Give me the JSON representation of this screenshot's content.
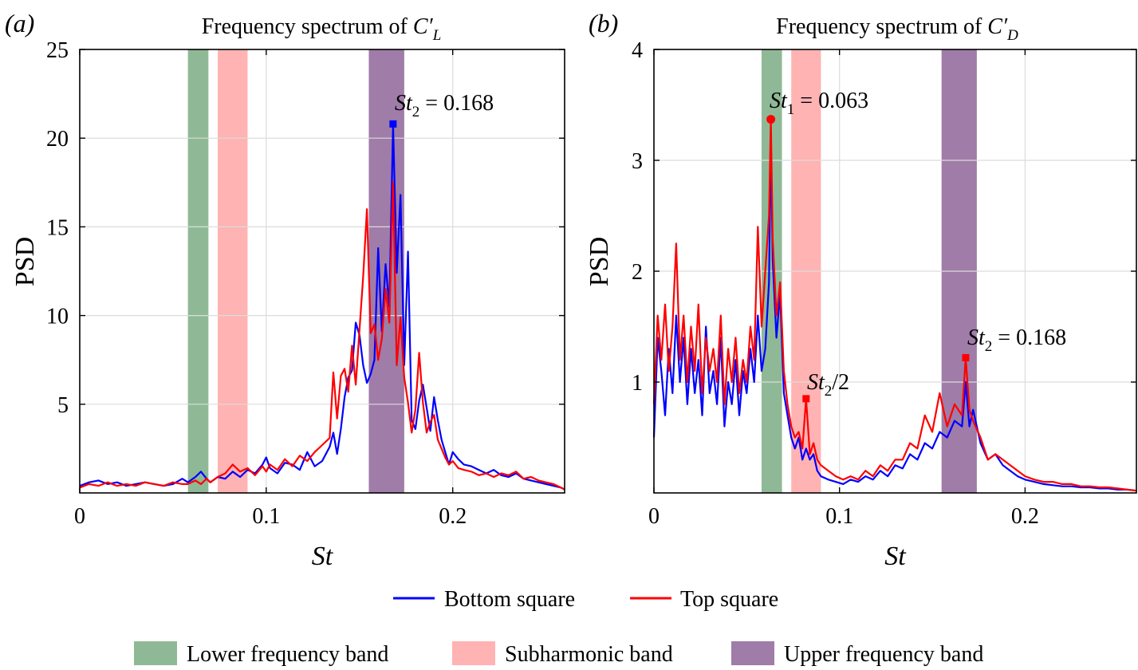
{
  "colors": {
    "bottom": "#0000ff",
    "top": "#ff0000",
    "lower_band": "#8fb996",
    "sub_band": "#ffb3b3",
    "upper_band": "#a07ca8",
    "grid": "#dcdcdc"
  },
  "legend": {
    "lines": [
      {
        "key": "bottom",
        "label": "Bottom square"
      },
      {
        "key": "top",
        "label": "Top square"
      }
    ],
    "bands": [
      {
        "key": "lower_band",
        "label": "Lower frequency band"
      },
      {
        "key": "sub_band",
        "label": "Subharmonic band"
      },
      {
        "key": "upper_band",
        "label": "Upper frequency band"
      }
    ]
  },
  "chart_data": [
    {
      "type": "line",
      "panel_label": "(a)",
      "title": "Frequency spectrum of C′L",
      "xlabel": "St",
      "ylabel": "PSD",
      "xlim": [
        0,
        0.26
      ],
      "ylim": [
        0,
        25
      ],
      "xticks": [
        0,
        0.1,
        0.2
      ],
      "xtick_labels": [
        "0",
        "0.1",
        "0.2"
      ],
      "yticks": [
        5,
        10,
        15,
        20,
        25
      ],
      "ytick_labels": [
        "5",
        "10",
        "15",
        "20",
        "25"
      ],
      "grid": true,
      "bands": [
        {
          "key": "lower_band",
          "range": [
            0.058,
            0.069
          ]
        },
        {
          "key": "sub_band",
          "range": [
            0.074,
            0.09
          ]
        },
        {
          "key": "upper_band",
          "range": [
            0.155,
            0.174
          ]
        }
      ],
      "series": [
        {
          "name": "Bottom square",
          "key": "bottom",
          "x": [
            0,
            0.005,
            0.01,
            0.015,
            0.02,
            0.025,
            0.03,
            0.035,
            0.04,
            0.045,
            0.05,
            0.055,
            0.058,
            0.062,
            0.065,
            0.068,
            0.07,
            0.074,
            0.078,
            0.082,
            0.086,
            0.09,
            0.094,
            0.098,
            0.1,
            0.102,
            0.106,
            0.11,
            0.114,
            0.118,
            0.122,
            0.126,
            0.13,
            0.134,
            0.136,
            0.138,
            0.14,
            0.142,
            0.144,
            0.146,
            0.148,
            0.15,
            0.152,
            0.154,
            0.156,
            0.158,
            0.16,
            0.162,
            0.164,
            0.166,
            0.168,
            0.17,
            0.172,
            0.174,
            0.176,
            0.178,
            0.18,
            0.182,
            0.184,
            0.186,
            0.188,
            0.19,
            0.192,
            0.194,
            0.196,
            0.198,
            0.2,
            0.203,
            0.206,
            0.21,
            0.214,
            0.218,
            0.222,
            0.226,
            0.23,
            0.234,
            0.238,
            0.242,
            0.246,
            0.25,
            0.254,
            0.258,
            0.26
          ],
          "y": [
            0.4,
            0.6,
            0.7,
            0.5,
            0.6,
            0.4,
            0.5,
            0.6,
            0.5,
            0.4,
            0.5,
            0.8,
            0.6,
            0.9,
            1.2,
            0.8,
            0.6,
            0.9,
            0.8,
            1.2,
            0.9,
            1.3,
            1.1,
            1.6,
            2.0,
            1.4,
            1.1,
            1.7,
            1.6,
            1.3,
            2.3,
            1.5,
            1.8,
            2.6,
            3.4,
            2.2,
            3.6,
            5.4,
            6.5,
            6.9,
            9.6,
            8.9,
            7.2,
            6.2,
            6.7,
            7.5,
            13.8,
            9.1,
            12.9,
            10.5,
            20.8,
            12.4,
            16.8,
            7.2,
            13.6,
            4.1,
            3.6,
            5.2,
            6.1,
            4.8,
            3.5,
            5.4,
            4.1,
            3.0,
            2.3,
            1.6,
            2.3,
            1.9,
            1.6,
            1.5,
            1.3,
            1.1,
            1.3,
            1.0,
            0.9,
            1.1,
            0.8,
            0.7,
            0.6,
            0.5,
            0.4,
            0.3,
            0.2
          ]
        },
        {
          "name": "Top square",
          "key": "top",
          "x": [
            0,
            0.005,
            0.01,
            0.015,
            0.02,
            0.025,
            0.03,
            0.035,
            0.04,
            0.045,
            0.05,
            0.055,
            0.058,
            0.062,
            0.065,
            0.068,
            0.07,
            0.074,
            0.078,
            0.082,
            0.086,
            0.09,
            0.094,
            0.098,
            0.1,
            0.102,
            0.106,
            0.11,
            0.114,
            0.118,
            0.122,
            0.126,
            0.13,
            0.134,
            0.136,
            0.138,
            0.14,
            0.142,
            0.144,
            0.146,
            0.148,
            0.15,
            0.152,
            0.154,
            0.156,
            0.158,
            0.16,
            0.162,
            0.164,
            0.166,
            0.168,
            0.17,
            0.172,
            0.174,
            0.176,
            0.178,
            0.18,
            0.182,
            0.184,
            0.186,
            0.188,
            0.19,
            0.192,
            0.194,
            0.196,
            0.198,
            0.2,
            0.203,
            0.206,
            0.21,
            0.214,
            0.218,
            0.222,
            0.226,
            0.23,
            0.234,
            0.238,
            0.242,
            0.246,
            0.25,
            0.254,
            0.258,
            0.26
          ],
          "y": [
            0.3,
            0.5,
            0.4,
            0.6,
            0.4,
            0.5,
            0.4,
            0.6,
            0.5,
            0.4,
            0.6,
            0.5,
            0.5,
            0.7,
            0.5,
            0.8,
            0.6,
            0.9,
            1.1,
            1.6,
            1.2,
            1.4,
            1.0,
            1.5,
            1.2,
            1.6,
            1.3,
            1.9,
            1.5,
            2.1,
            1.8,
            2.3,
            2.7,
            3.1,
            6.8,
            4.2,
            6.6,
            7.0,
            5.7,
            8.3,
            6.1,
            9.2,
            12.2,
            16.0,
            9.0,
            9.5,
            7.5,
            8.7,
            11.5,
            9.6,
            17.5,
            7.2,
            9.9,
            6.5,
            5.1,
            3.4,
            4.7,
            7.9,
            5.1,
            3.4,
            4.0,
            4.4,
            3.0,
            2.5,
            2.0,
            1.6,
            1.8,
            1.4,
            1.3,
            1.2,
            1.0,
            1.1,
            0.9,
            1.1,
            1.0,
            1.2,
            0.8,
            0.9,
            0.7,
            0.6,
            0.5,
            0.3,
            0.2
          ]
        }
      ],
      "annotations": [
        {
          "text": "St2 = 0.168",
          "x": 0.168,
          "y": 20.8,
          "series": "bottom",
          "marker": "square"
        }
      ]
    },
    {
      "type": "line",
      "panel_label": "(b)",
      "title": "Frequency spectrum of C′D",
      "xlabel": "St",
      "ylabel": "PSD",
      "xlim": [
        0,
        0.26
      ],
      "ylim": [
        0,
        4
      ],
      "xticks": [
        0,
        0.1,
        0.2
      ],
      "xtick_labels": [
        "0",
        "0.1",
        "0.2"
      ],
      "yticks": [
        1,
        2,
        3,
        4
      ],
      "ytick_labels": [
        "1",
        "2",
        "3",
        "4"
      ],
      "grid": true,
      "bands": [
        {
          "key": "lower_band",
          "range": [
            0.058,
            0.069
          ]
        },
        {
          "key": "sub_band",
          "range": [
            0.074,
            0.09
          ]
        },
        {
          "key": "upper_band",
          "range": [
            0.155,
            0.174
          ]
        }
      ],
      "series": [
        {
          "name": "Bottom square",
          "key": "bottom",
          "x": [
            0,
            0.002,
            0.004,
            0.006,
            0.008,
            0.01,
            0.012,
            0.014,
            0.016,
            0.018,
            0.02,
            0.022,
            0.024,
            0.026,
            0.028,
            0.03,
            0.032,
            0.034,
            0.036,
            0.038,
            0.04,
            0.042,
            0.044,
            0.046,
            0.048,
            0.05,
            0.052,
            0.054,
            0.056,
            0.058,
            0.06,
            0.062,
            0.063,
            0.064,
            0.066,
            0.068,
            0.07,
            0.072,
            0.074,
            0.076,
            0.078,
            0.08,
            0.082,
            0.084,
            0.086,
            0.088,
            0.09,
            0.094,
            0.098,
            0.102,
            0.106,
            0.11,
            0.114,
            0.118,
            0.122,
            0.126,
            0.13,
            0.134,
            0.138,
            0.142,
            0.146,
            0.15,
            0.154,
            0.158,
            0.162,
            0.166,
            0.168,
            0.17,
            0.172,
            0.176,
            0.18,
            0.184,
            0.188,
            0.192,
            0.196,
            0.2,
            0.205,
            0.21,
            0.215,
            0.22,
            0.225,
            0.23,
            0.235,
            0.24,
            0.245,
            0.25,
            0.255,
            0.26
          ],
          "y": [
            0.5,
            1.4,
            1.1,
            0.7,
            1.3,
            0.9,
            1.6,
            1.0,
            1.4,
            0.8,
            1.3,
            0.9,
            1.2,
            0.7,
            1.5,
            0.9,
            1.1,
            0.8,
            1.4,
            0.6,
            1.0,
            0.8,
            1.2,
            0.7,
            1.1,
            0.9,
            1.3,
            1.0,
            1.6,
            1.1,
            1.3,
            1.9,
            3.2,
            2.1,
            1.4,
            1.8,
            0.9,
            0.7,
            0.5,
            0.4,
            0.5,
            0.3,
            0.4,
            0.3,
            0.35,
            0.2,
            0.15,
            0.12,
            0.1,
            0.08,
            0.12,
            0.1,
            0.15,
            0.12,
            0.2,
            0.15,
            0.25,
            0.22,
            0.35,
            0.3,
            0.45,
            0.4,
            0.55,
            0.5,
            0.65,
            0.6,
            1.0,
            0.6,
            0.75,
            0.45,
            0.3,
            0.35,
            0.25,
            0.2,
            0.15,
            0.12,
            0.1,
            0.08,
            0.07,
            0.06,
            0.06,
            0.05,
            0.05,
            0.04,
            0.04,
            0.03,
            0.03,
            0.02
          ]
        },
        {
          "name": "Top square",
          "key": "top",
          "x": [
            0,
            0.002,
            0.004,
            0.006,
            0.008,
            0.01,
            0.012,
            0.014,
            0.016,
            0.018,
            0.02,
            0.022,
            0.024,
            0.026,
            0.028,
            0.03,
            0.032,
            0.034,
            0.036,
            0.038,
            0.04,
            0.042,
            0.044,
            0.046,
            0.048,
            0.05,
            0.052,
            0.054,
            0.056,
            0.058,
            0.06,
            0.062,
            0.063,
            0.064,
            0.066,
            0.068,
            0.07,
            0.072,
            0.074,
            0.076,
            0.078,
            0.08,
            0.082,
            0.084,
            0.086,
            0.088,
            0.09,
            0.094,
            0.098,
            0.102,
            0.106,
            0.11,
            0.114,
            0.118,
            0.122,
            0.126,
            0.13,
            0.134,
            0.138,
            0.142,
            0.146,
            0.15,
            0.154,
            0.158,
            0.162,
            0.166,
            0.168,
            0.17,
            0.172,
            0.176,
            0.18,
            0.184,
            0.188,
            0.192,
            0.196,
            0.2,
            0.205,
            0.21,
            0.215,
            0.22,
            0.225,
            0.23,
            0.235,
            0.24,
            0.245,
            0.25,
            0.255,
            0.26
          ],
          "y": [
            0.8,
            1.6,
            1.2,
            1.7,
            1.1,
            1.5,
            2.25,
            1.2,
            1.6,
            1.0,
            1.5,
            1.1,
            1.7,
            0.9,
            1.4,
            1.1,
            1.3,
            1.0,
            1.6,
            0.8,
            1.3,
            1.0,
            1.4,
            0.9,
            1.2,
            1.0,
            1.5,
            1.2,
            2.4,
            1.5,
            2.0,
            2.5,
            3.37,
            2.3,
            1.6,
            1.9,
            1.1,
            0.8,
            0.6,
            0.5,
            0.55,
            0.4,
            0.85,
            0.35,
            0.45,
            0.3,
            0.25,
            0.2,
            0.15,
            0.12,
            0.15,
            0.12,
            0.2,
            0.15,
            0.25,
            0.2,
            0.3,
            0.3,
            0.45,
            0.4,
            0.7,
            0.55,
            0.9,
            0.6,
            0.8,
            0.7,
            1.22,
            0.75,
            0.65,
            0.5,
            0.3,
            0.35,
            0.3,
            0.25,
            0.2,
            0.15,
            0.12,
            0.1,
            0.1,
            0.08,
            0.08,
            0.06,
            0.06,
            0.05,
            0.05,
            0.04,
            0.03,
            0.02
          ]
        }
      ],
      "annotations": [
        {
          "text": "St1 = 0.063",
          "x": 0.063,
          "y": 3.37,
          "series": "top",
          "marker": "circle"
        },
        {
          "text": "St2/2",
          "x": 0.082,
          "y": 0.85,
          "series": "top",
          "marker": "square"
        },
        {
          "text": "St2 = 0.168",
          "x": 0.168,
          "y": 1.22,
          "series": "top",
          "marker": "square"
        }
      ]
    }
  ]
}
